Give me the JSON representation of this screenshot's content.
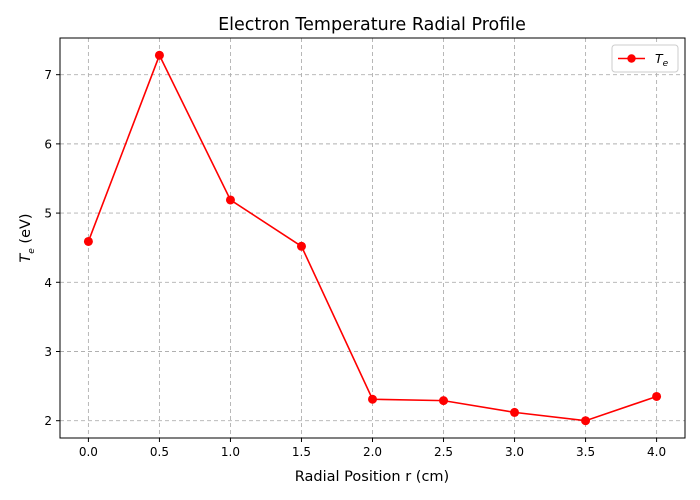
{
  "chart_data": {
    "type": "line",
    "title": "Electron Temperature Radial Profile",
    "xlabel": "Radial Position r (cm)",
    "ylabel": {
      "symbol": "T",
      "subscript": "e",
      "unit": " (eV)"
    },
    "xlim": [
      -0.2,
      4.2
    ],
    "ylim": [
      1.75,
      7.53
    ],
    "xticks": [
      0.0,
      0.5,
      1.0,
      1.5,
      2.0,
      2.5,
      3.0,
      3.5,
      4.0
    ],
    "xtick_labels": [
      "0.0",
      "0.5",
      "1.0",
      "1.5",
      "2.0",
      "2.5",
      "3.0",
      "3.5",
      "4.0"
    ],
    "yticks": [
      2,
      3,
      4,
      5,
      6,
      7
    ],
    "ytick_labels": [
      "2",
      "3",
      "4",
      "5",
      "6",
      "7"
    ],
    "grid": true,
    "legend_position": "top-right",
    "series": [
      {
        "name": {
          "symbol": "T",
          "subscript": "e"
        },
        "color": "#ff0000",
        "marker": "circle",
        "x": [
          0.0,
          0.5,
          1.0,
          1.5,
          2.0,
          2.5,
          3.0,
          3.5,
          4.0
        ],
        "y": [
          4.59,
          7.28,
          5.19,
          4.52,
          2.31,
          2.29,
          2.12,
          2.0,
          2.35
        ]
      }
    ]
  }
}
